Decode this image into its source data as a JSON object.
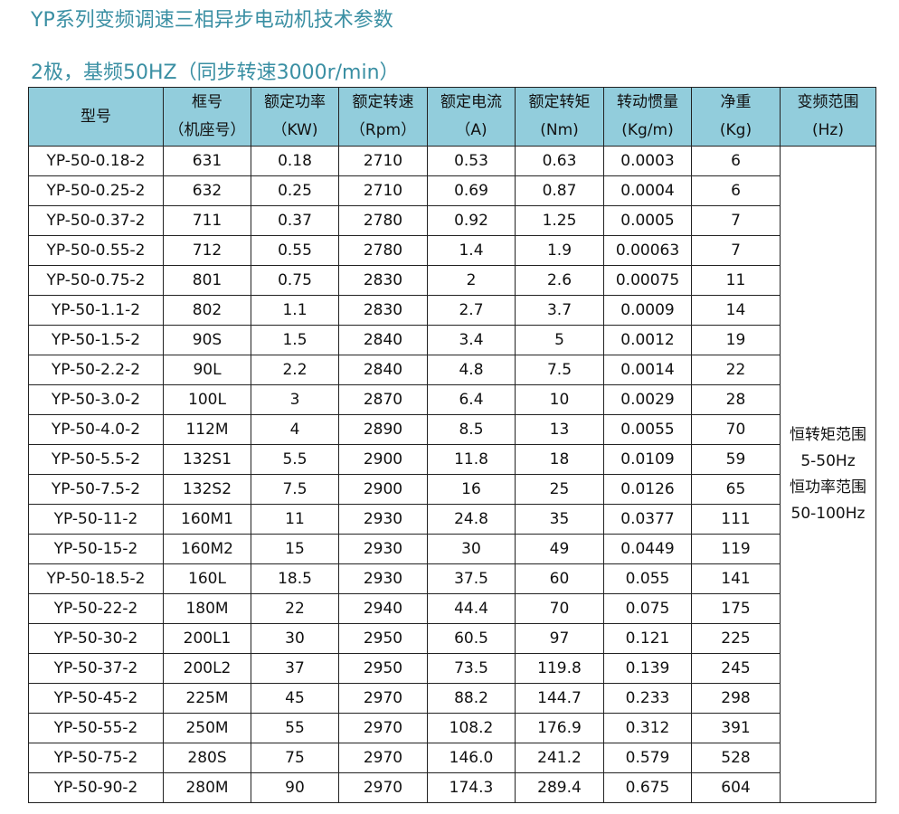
{
  "title": "YP系列变频调速三相异步电动机技术参数",
  "subtitle": "2极，基频50HZ（同步转速3000r/min）",
  "headers": [
    [
      "型号",
      ""
    ],
    [
      "框号",
      "（机座号）"
    ],
    [
      "额定功率",
      "（KW)"
    ],
    [
      "额定转速",
      "（Rpm）"
    ],
    [
      "额定电流",
      "（A)"
    ],
    [
      "额定转矩",
      "(Nm)"
    ],
    [
      "转动惯量",
      "(Kg/m)"
    ],
    [
      "净重",
      "(Kg)"
    ],
    [
      "变频范围",
      "(Hz)"
    ]
  ],
  "rows": [
    [
      "YP-50-0.18-2",
      "631",
      "0.18",
      "2710",
      "0.53",
      "0.63",
      "0.0003",
      "6"
    ],
    [
      "YP-50-0.25-2",
      "632",
      "0.25",
      "2710",
      "0.69",
      "0.87",
      "0.0004",
      "6"
    ],
    [
      "YP-50-0.37-2",
      "711",
      "0.37",
      "2780",
      "0.92",
      "1.25",
      "0.0005",
      "7"
    ],
    [
      "YP-50-0.55-2",
      "712",
      "0.55",
      "2780",
      "1.4",
      "1.9",
      "0.00063",
      "7"
    ],
    [
      "YP-50-0.75-2",
      "801",
      "0.75",
      "2830",
      "2",
      "2.6",
      "0.00075",
      "11"
    ],
    [
      "YP-50-1.1-2",
      "802",
      "1.1",
      "2830",
      "2.7",
      "3.7",
      "0.0009",
      "14"
    ],
    [
      "YP-50-1.5-2",
      "90S",
      "1.5",
      "2840",
      "3.4",
      "5",
      "0.0012",
      "19"
    ],
    [
      "YP-50-2.2-2",
      "90L",
      "2.2",
      "2840",
      "4.8",
      "7.5",
      "0.0014",
      "22"
    ],
    [
      "YP-50-3.0-2",
      "100L",
      "3",
      "2870",
      "6.4",
      "10",
      "0.0029",
      "28"
    ],
    [
      "YP-50-4.0-2",
      "112M",
      "4",
      "2890",
      "8.5",
      "13",
      "0.0055",
      "70"
    ],
    [
      "YP-50-5.5-2",
      "132S1",
      "5.5",
      "2900",
      "11.8",
      "18",
      "0.0109",
      "59"
    ],
    [
      "YP-50-7.5-2",
      "132S2",
      "7.5",
      "2900",
      "16",
      "25",
      "0.0126",
      "65"
    ],
    [
      "YP-50-11-2",
      "160M1",
      "11",
      "2930",
      "24.8",
      "35",
      "0.0377",
      "111"
    ],
    [
      "YP-50-15-2",
      "160M2",
      "15",
      "2930",
      "30",
      "49",
      "0.0449",
      "119"
    ],
    [
      "YP-50-18.5-2",
      "160L",
      "18.5",
      "2930",
      "37.5",
      "60",
      "0.055",
      "141"
    ],
    [
      "YP-50-22-2",
      "180M",
      "22",
      "2940",
      "44.4",
      "70",
      "0.075",
      "175"
    ],
    [
      "YP-50-30-2",
      "200L1",
      "30",
      "2950",
      "60.5",
      "97",
      "0.121",
      "225"
    ],
    [
      "YP-50-37-2",
      "200L2",
      "37",
      "2950",
      "73.5",
      "119.8",
      "0.139",
      "245"
    ],
    [
      "YP-50-45-2",
      "225M",
      "45",
      "2970",
      "88.2",
      "144.7",
      "0.233",
      "298"
    ],
    [
      "YP-50-55-2",
      "250M",
      "55",
      "2970",
      "108.2",
      "176.9",
      "0.312",
      "391"
    ],
    [
      "YP-50-75-2",
      "280S",
      "75",
      "2970",
      "146.0",
      "241.2",
      "0.579",
      "528"
    ],
    [
      "YP-50-90-2",
      "280M",
      "90",
      "2970",
      "174.3",
      "289.4",
      "0.675",
      "604"
    ]
  ],
  "freq_range": [
    "恒转矩范围",
    "5-50Hz",
    "恒功率范围",
    "50-100Hz"
  ],
  "colors": {
    "title": "#3a8fa3",
    "header_bg": "#92cddc"
  }
}
